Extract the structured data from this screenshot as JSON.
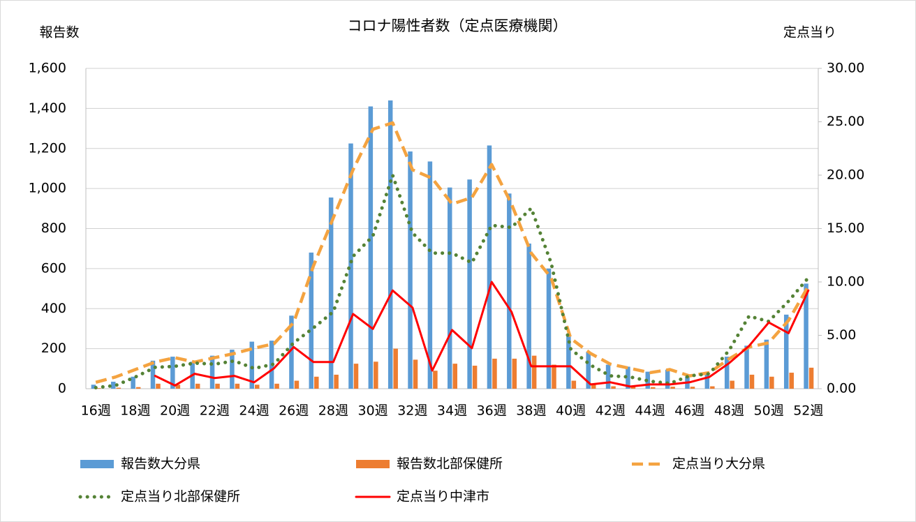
{
  "chart_data": {
    "type": "bar_line",
    "title": "コロナ陽性者数（定点医療機関）",
    "y_label": "報告数",
    "y2_label": "定点当り",
    "categories": [
      "16週",
      null,
      "18週",
      null,
      "20週",
      null,
      "22週",
      null,
      "24週",
      null,
      "26週",
      null,
      "28週",
      null,
      "30週",
      null,
      "32週",
      null,
      "34週",
      null,
      "36週",
      null,
      "38週",
      null,
      "40週",
      null,
      "42週",
      null,
      "44週",
      null,
      "46週",
      null,
      "48週",
      null,
      "50週",
      null,
      "52週"
    ],
    "ylim": [
      0,
      1600
    ],
    "yticks": [
      0,
      200,
      400,
      600,
      800,
      {
        "value": 1000,
        "label": "1,000"
      },
      {
        "value": 1200,
        "label": "1,200"
      },
      {
        "value": 1400,
        "label": "1,400"
      },
      {
        "value": 1600,
        "label": "1,600"
      }
    ],
    "y2lim": [
      0,
      30
    ],
    "y2ticks": [
      {
        "value": 0,
        "label": "0.00"
      },
      {
        "value": 5,
        "label": "5.00"
      },
      {
        "value": 10,
        "label": "10.00"
      },
      {
        "value": 15,
        "label": "15.00"
      },
      {
        "value": 20,
        "label": "20.00"
      },
      {
        "value": 25,
        "label": "25.00"
      },
      {
        "value": 30,
        "label": "30.00"
      }
    ],
    "grid": true,
    "legend": "bottom",
    "series": [
      {
        "name": "報告数大分県",
        "kind": "bar",
        "color": "#5b9bd5",
        "values": [
          20,
          35,
          60,
          140,
          160,
          135,
          165,
          195,
          235,
          240,
          365,
          680,
          955,
          1225,
          1410,
          1440,
          1185,
          1135,
          1005,
          1045,
          1215,
          975,
          725,
          600,
          270,
          185,
          120,
          110,
          85,
          95,
          60,
          80,
          160,
          215,
          245,
          370,
          525
        ]
      },
      {
        "name": "報告数北部保健所",
        "kind": "bar",
        "color": "#ed7d31",
        "values": [
          3,
          5,
          8,
          25,
          20,
          25,
          25,
          25,
          20,
          25,
          40,
          60,
          70,
          125,
          135,
          200,
          145,
          90,
          125,
          115,
          150,
          150,
          165,
          120,
          40,
          25,
          12,
          10,
          8,
          10,
          10,
          12,
          40,
          70,
          60,
          80,
          105
        ]
      },
      {
        "name": "定点当り大分県",
        "kind": "dashed",
        "axis": "y2",
        "color": "#f4a340",
        "values": [
          0.6,
          1.1,
          1.8,
          2.5,
          2.9,
          2.5,
          2.9,
          3.3,
          3.8,
          4.2,
          6.2,
          11.5,
          16,
          20.5,
          24.3,
          24.9,
          20.5,
          19.7,
          17.3,
          17.9,
          21,
          17.3,
          12.7,
          10.4,
          4.7,
          3.3,
          2.3,
          1.9,
          1.5,
          1.8,
          1.2,
          1.5,
          2.8,
          3.9,
          4.3,
          6.4,
          9.6
        ]
      },
      {
        "name": "定点当り北部保健所",
        "kind": "dotted",
        "axis": "y2",
        "color": "#548235",
        "values": [
          0.1,
          0.3,
          1.1,
          2.0,
          2.1,
          2.4,
          2.3,
          2.6,
          1.9,
          2.3,
          4.3,
          5.7,
          7.2,
          12.4,
          14.3,
          20,
          14.6,
          12.7,
          12.7,
          11.8,
          15.3,
          15.1,
          16.9,
          11.8,
          3.7,
          2.2,
          1.2,
          1.1,
          0.7,
          0.5,
          1.2,
          1.4,
          3.6,
          6.8,
          6.3,
          8.2,
          10.4
        ]
      },
      {
        "name": "定点当り中津市",
        "kind": "solid",
        "axis": "y2",
        "color": "#ff0000",
        "values": [
          null,
          null,
          null,
          1.2,
          0.3,
          1.4,
          1.0,
          1.2,
          0.6,
          1.9,
          3.9,
          2.5,
          2.5,
          7.0,
          5.6,
          9.2,
          7.6,
          1.7,
          5.5,
          3.8,
          10,
          7.2,
          2.1,
          2.1,
          2.1,
          0.4,
          0.6,
          0.2,
          0.4,
          0.4,
          0.6,
          1.1,
          2.4,
          4.0,
          6.2,
          5.2,
          9.2
        ]
      }
    ]
  }
}
